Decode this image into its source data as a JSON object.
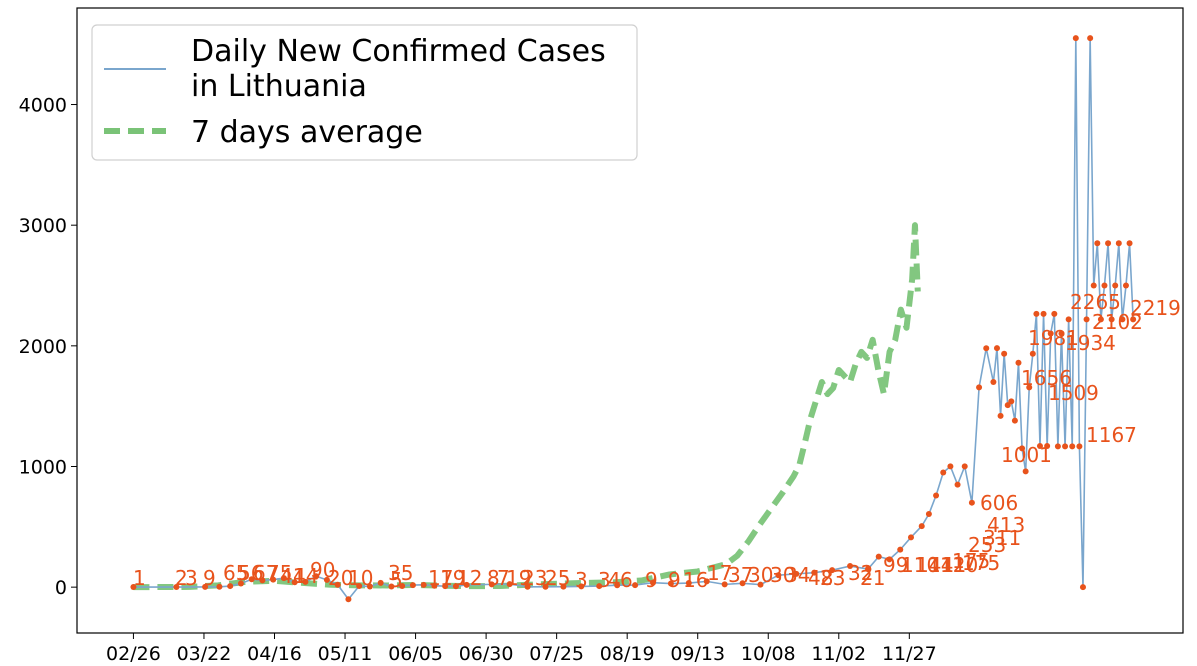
{
  "chart_data": {
    "type": "line",
    "title": "",
    "xlabel": "",
    "ylabel": "",
    "ylim": [
      -380,
      4800
    ],
    "yticks": [
      0,
      1000,
      2000,
      3000,
      4000
    ],
    "xticks": [
      "02/26",
      "03/22",
      "04/16",
      "05/11",
      "06/05",
      "06/30",
      "07/25",
      "08/19",
      "09/13",
      "10/08",
      "11/02",
      "11/27"
    ],
    "grid": false,
    "legend_position": "top-left",
    "colors": {
      "daily_line": "#7aa6cd",
      "average_line": "#4daf4a",
      "markers": "#e8531c",
      "annotations": "#e8531c"
    },
    "series": [
      {
        "name": "Daily New Confirmed Cases\n in Lithuania",
        "style": "solid",
        "x": [
          0,
          12,
          20,
          24,
          27,
          30,
          33,
          36,
          39,
          42,
          45,
          48,
          51,
          54,
          57,
          60,
          63,
          66,
          69,
          72,
          75,
          78,
          81,
          84,
          87,
          90,
          93,
          100,
          105,
          110,
          115,
          120,
          125,
          130,
          135,
          140,
          145,
          150,
          155,
          160,
          165,
          170,
          175,
          180,
          185,
          190,
          195,
          200,
          205,
          208,
          211,
          214,
          217,
          220,
          222,
          224,
          226,
          228,
          230,
          232,
          234,
          236,
          238,
          240,
          241,
          242,
          243,
          244,
          245,
          246,
          247,
          248,
          249,
          250,
          251,
          252,
          253,
          254,
          255,
          256,
          257,
          258,
          259,
          260,
          261,
          262,
          263,
          264,
          265,
          266,
          267,
          268,
          269,
          270,
          271,
          272,
          273,
          274,
          275,
          276,
          277,
          278,
          279
        ],
        "y": [
          1,
          1,
          2,
          3,
          9,
          30,
          65,
          56,
          62,
          75,
          41,
          44,
          90,
          60,
          20,
          -100,
          10,
          5,
          35,
          5,
          10,
          17,
          19,
          12,
          8,
          7,
          19,
          23,
          25,
          3,
          3,
          4,
          6,
          9,
          16,
          17,
          37,
          30,
          34,
          48,
          23,
          32,
          21,
          99,
          110,
          120,
          141,
          175,
          150,
          253,
          230,
          311,
          413,
          506,
          606,
          760,
          950,
          1001,
          850,
          1001,
          700,
          1656,
          1980,
          1700,
          1981,
          1420,
          1934,
          1509,
          1540,
          1380,
          1860,
          1150,
          960,
          1656,
          1934,
          2265,
          1170,
          2265,
          1170,
          2102,
          2265,
          1167,
          2102,
          1167,
          2219,
          1167,
          4550,
          1167,
          0,
          2219,
          4550,
          2500,
          2850,
          2219,
          2500,
          2850,
          2219,
          2500,
          2850,
          2219,
          2500,
          2850,
          2219
        ]
      },
      {
        "name": "7 days average",
        "style": "dashed",
        "x": [
          0,
          20,
          30,
          40,
          50,
          60,
          70,
          80,
          90,
          100,
          110,
          120,
          130,
          140,
          150,
          160,
          170,
          180,
          190,
          200,
          205,
          210,
          214,
          218,
          222,
          226,
          230,
          234,
          236,
          238,
          240,
          242,
          244,
          246,
          248,
          250,
          252,
          254,
          256,
          258,
          260,
          262,
          264,
          266,
          268,
          270,
          272,
          274,
          276,
          277,
          278
        ],
        "y": [
          0,
          2,
          15,
          45,
          52,
          35,
          20,
          15,
          14,
          18,
          12,
          8,
          10,
          20,
          28,
          35,
          40,
          55,
          105,
          130,
          160,
          190,
          260,
          380,
          520,
          650,
          780,
          920,
          1010,
          1200,
          1400,
          1550,
          1700,
          1600,
          1650,
          1800,
          1750,
          1700,
          1850,
          1950,
          1900,
          2050,
          1800,
          1600,
          1950,
          2050,
          2300,
          2150,
          2550,
          3000,
          2450
        ]
      }
    ],
    "annotations": [
      {
        "x": 2,
        "y": 1,
        "text": "1"
      },
      {
        "x": 22,
        "y": 2,
        "text": "2"
      },
      {
        "x": 24,
        "y": 3,
        "text": "3"
      },
      {
        "x": 30,
        "y": 9,
        "text": "9"
      },
      {
        "x": 38,
        "y": 65,
        "text": "65"
      },
      {
        "x": 43,
        "y": 56,
        "text": "56"
      },
      {
        "x": 48,
        "y": 67,
        "text": "67"
      },
      {
        "x": 53,
        "y": 75,
        "text": "75"
      },
      {
        "x": 58,
        "y": 41,
        "text": "41"
      },
      {
        "x": 62,
        "y": 44,
        "text": "44"
      },
      {
        "x": 67,
        "y": 90,
        "text": "90"
      },
      {
        "x": 72,
        "y": 20,
        "text": "20"
      },
      {
        "x": 78,
        "y": 10,
        "text": "10"
      },
      {
        "x": 93,
        "y": 35,
        "text": "35"
      },
      {
        "x": 95,
        "y": 5,
        "text": "5"
      },
      {
        "x": 117,
        "y": 17,
        "text": "17"
      },
      {
        "x": 121,
        "y": 19,
        "text": "19"
      },
      {
        "x": 127,
        "y": 12,
        "text": "12"
      },
      {
        "x": 137,
        "y": 8,
        "text": "8"
      },
      {
        "x": 141,
        "y": 7,
        "text": "7"
      },
      {
        "x": 145,
        "y": 19,
        "text": "19"
      },
      {
        "x": 152,
        "y": 23,
        "text": "23"
      },
      {
        "x": 162,
        "y": 25,
        "text": "25"
      },
      {
        "x": 175,
        "y": 3,
        "text": "3"
      },
      {
        "x": 181,
        "y": 3,
        "text": "3"
      },
      {
        "x": 187,
        "y": 4,
        "text": "4"
      },
      {
        "x": 191,
        "y": 6,
        "text": "6"
      },
      {
        "x": 193,
        "y": 9,
        "text": "9"
      },
      {
        "x": 199,
        "y": 9,
        "text": "9"
      },
      {
        "x": 207,
        "y": 16,
        "text": "16"
      },
      {
        "x": 213,
        "y": 17,
        "text": "17"
      },
      {
        "x": 219,
        "y": 37,
        "text": "37"
      },
      {
        "x": 227,
        "y": 30,
        "text": "30"
      },
      {
        "x": 232,
        "y": 30,
        "text": "30"
      },
      {
        "x": 239,
        "y": 34,
        "text": "34"
      },
      {
        "x": 243,
        "y": 48,
        "text": "48"
      },
      {
        "x": 249,
        "y": 23,
        "text": "23"
      },
      {
        "x": 259,
        "y": 32,
        "text": "32"
      },
      {
        "x": 263,
        "y": 21,
        "text": "21"
      },
      {
        "x": 275,
        "y": 99,
        "text": "99"
      },
      {
        "x": 281,
        "y": 110,
        "text": "110"
      },
      {
        "x": 286,
        "y": 141,
        "text": "141"
      },
      {
        "x": 291,
        "y": 141,
        "text": "141"
      },
      {
        "x": 298,
        "y": 120,
        "text": "120"
      },
      {
        "x": 303,
        "y": 175,
        "text": "175"
      },
      {
        "x": 307,
        "y": 175,
        "text": "175"
      },
      {
        "x": 313,
        "y": 253,
        "text": "253"
      },
      {
        "x": 318,
        "y": 311,
        "text": "311"
      },
      {
        "x": 320,
        "y": 413,
        "text": "413"
      },
      {
        "x": 316,
        "y": 606,
        "text": "606"
      },
      {
        "x": 328,
        "y": 1001,
        "text": "1001"
      },
      {
        "x": 337,
        "y": 1656,
        "text": "1656"
      },
      {
        "x": 340,
        "y": 1981,
        "text": "1981"
      },
      {
        "x": 342,
        "y": 1509,
        "text": "1509"
      },
      {
        "x": 346,
        "y": 1934,
        "text": "1934"
      },
      {
        "x": 349,
        "y": 2265,
        "text": "2265"
      },
      {
        "x": 352,
        "y": 2102,
        "text": "2102"
      },
      {
        "x": 357,
        "y": 2219,
        "text": "2219"
      },
      {
        "x": 349,
        "y": 1167,
        "text": "1167"
      }
    ],
    "ann_positions": [
      [
        133,
        585
      ],
      [
        175,
        585
      ],
      [
        185,
        585
      ],
      [
        203,
        585
      ],
      [
        223,
        580
      ],
      [
        238,
        580
      ],
      [
        253,
        580
      ],
      [
        267,
        580
      ],
      [
        280,
        583
      ],
      [
        293,
        583
      ],
      [
        310,
        577
      ],
      [
        328,
        585
      ],
      [
        348,
        585
      ],
      [
        388,
        580
      ],
      [
        390,
        587
      ],
      [
        428,
        585
      ],
      [
        440,
        585
      ],
      [
        457,
        585
      ],
      [
        487,
        585
      ],
      [
        497,
        585
      ],
      [
        506,
        585
      ],
      [
        522,
        585
      ],
      [
        545,
        585
      ],
      [
        575,
        587
      ],
      [
        598,
        587
      ],
      [
        608,
        587
      ],
      [
        620,
        587
      ],
      [
        645,
        587
      ],
      [
        668,
        587
      ],
      [
        683,
        587
      ],
      [
        707,
        580
      ],
      [
        728,
        582
      ],
      [
        748,
        582
      ],
      [
        770,
        582
      ],
      [
        785,
        582
      ],
      [
        808,
        585
      ],
      [
        820,
        585
      ],
      [
        848,
        580
      ],
      [
        860,
        585
      ],
      [
        883,
        572
      ],
      [
        901,
        572
      ],
      [
        916,
        572
      ],
      [
        928,
        572
      ],
      [
        940,
        572
      ],
      [
        952,
        568
      ],
      [
        962,
        570
      ],
      [
        968,
        552
      ],
      [
        983,
        545
      ],
      [
        987,
        532
      ],
      [
        980,
        510
      ],
      [
        1001,
        462
      ],
      [
        1021,
        385
      ],
      [
        1028,
        345
      ],
      [
        1048,
        400
      ],
      [
        1065,
        350
      ],
      [
        1070,
        309
      ],
      [
        1092,
        329
      ],
      [
        1130,
        315
      ],
      [
        1086,
        442
      ]
    ]
  }
}
